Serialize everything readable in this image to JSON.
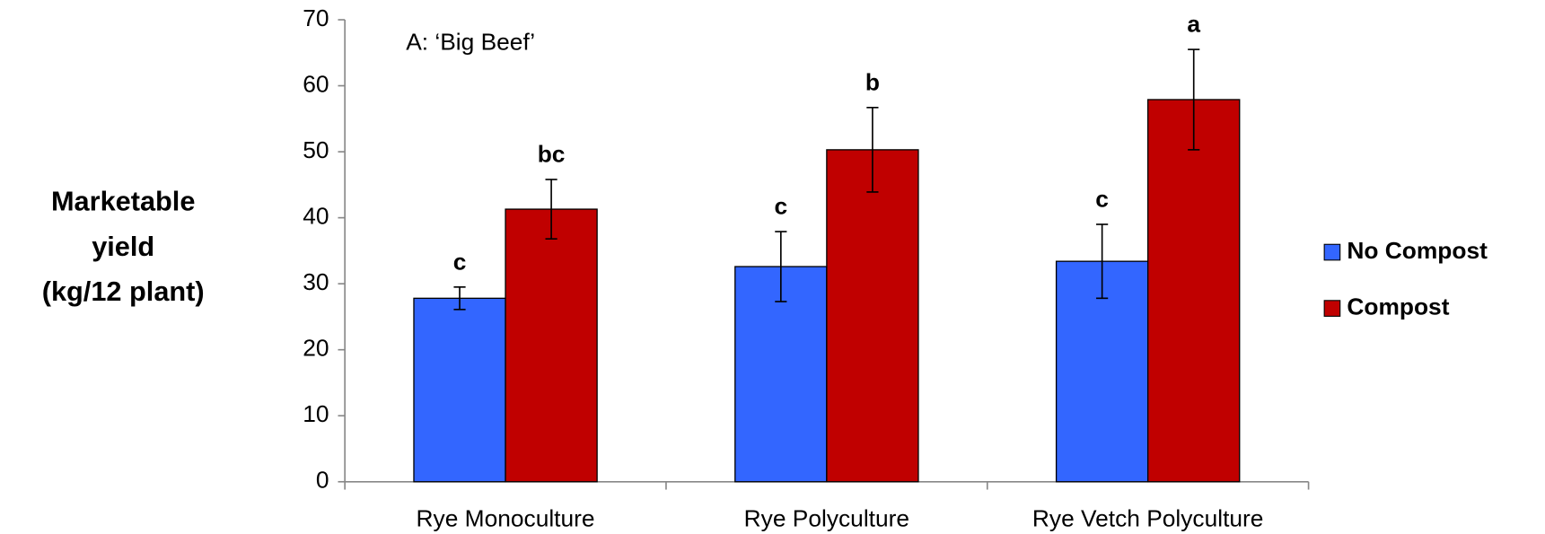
{
  "chart_data": {
    "type": "bar",
    "annotation": "A:  ‘Big Beef’",
    "y_label": [
      "Marketable",
      "yield",
      "(kg/12 plant)"
    ],
    "categories": [
      "Rye Monoculture",
      "Rye Polyculture",
      "Rye Vetch Polyculture"
    ],
    "series": [
      {
        "name": "No Compost",
        "color": "#3366ff",
        "values": [
          27.8,
          32.6,
          33.4
        ],
        "errors": [
          1.7,
          5.3,
          5.6
        ],
        "letters": [
          "c",
          "c",
          "c"
        ]
      },
      {
        "name": "Compost",
        "color": "#c00000",
        "values": [
          41.3,
          50.3,
          57.9
        ],
        "errors": [
          4.5,
          6.4,
          7.6
        ],
        "letters": [
          "bc",
          "b",
          "a"
        ]
      }
    ],
    "ylim": [
      0,
      70
    ],
    "yticks": [
      0,
      10,
      20,
      30,
      40,
      50,
      60,
      70
    ],
    "grid": false,
    "legend": "right"
  }
}
